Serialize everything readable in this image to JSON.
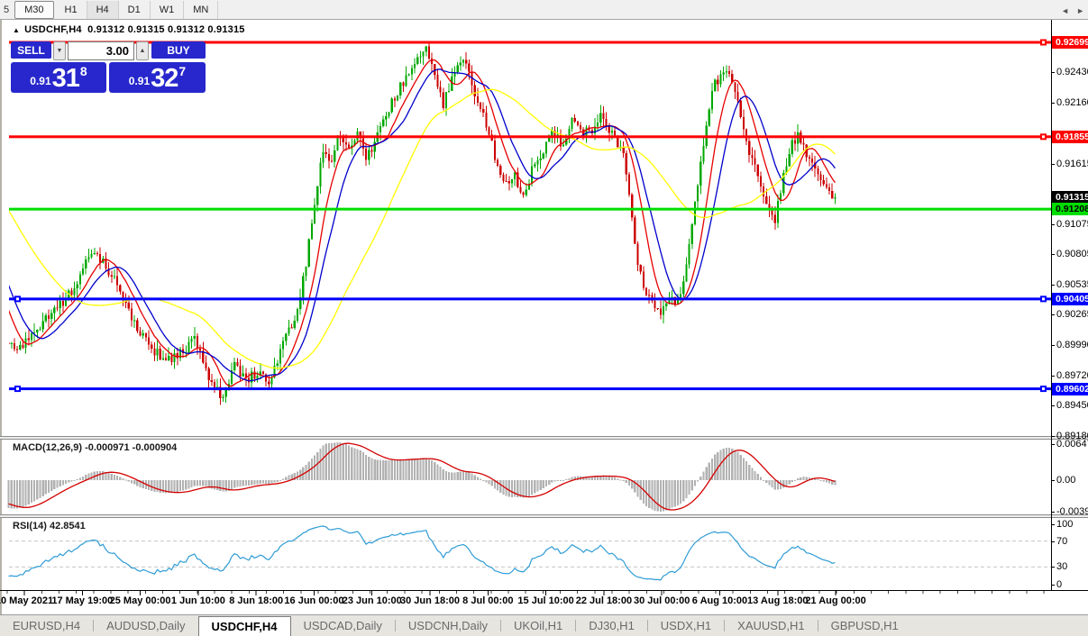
{
  "toolbar": {
    "items": [
      {
        "label": "5",
        "state": "partial"
      },
      {
        "label": "M30",
        "state": "pressed"
      },
      {
        "label": "H1",
        "state": "normal"
      },
      {
        "label": "H4",
        "state": "subtle"
      },
      {
        "label": "D1",
        "state": "normal"
      },
      {
        "label": "W1",
        "state": "normal"
      },
      {
        "label": "MN",
        "state": "normal"
      }
    ]
  },
  "header": {
    "collapse_icon": "▲",
    "title": "USDCHF,H4",
    "ohlc": "0.91312 0.91315 0.91312 0.91315"
  },
  "trade_panel": {
    "sell_label": "SELL",
    "buy_label": "BUY",
    "volume": "3.00",
    "spinner_down": "▼",
    "spinner_up": "▲",
    "sell_price": {
      "prefix": "0.91",
      "big": "31",
      "pip": "8"
    },
    "buy_price": {
      "prefix": "0.91",
      "big": "32",
      "pip": "7"
    }
  },
  "colors": {
    "up": "#00a800",
    "down": "#cc0000",
    "ma_fast": "#e60000",
    "ma_mid": "#0000cc",
    "ma_slow": "#ffff00",
    "line_red": "#ff0000",
    "line_green": "#00dd00",
    "line_blue": "#0000ff",
    "macd_hist": "#b2b2b2",
    "macd_signal": "#d40000",
    "rsi": "#2e9cd6",
    "level_dash": "#c6c6c6"
  },
  "chart_data": {
    "type": "candlestick",
    "symbol": "USDCHF",
    "timeframe": "H4",
    "current": {
      "open": "0.91312",
      "high": "0.91315",
      "low": "0.91312",
      "close": "0.91315"
    },
    "bars_visible": 290,
    "price_range_axis": {
      "top": 0.92699,
      "bottom": 0.8918
    },
    "price_path_anchors": [
      [
        0.0,
        0.9002
      ],
      [
        0.01,
        0.8993
      ],
      [
        0.028,
        0.9007
      ],
      [
        0.05,
        0.9026
      ],
      [
        0.075,
        0.9046
      ],
      [
        0.1,
        0.9082
      ],
      [
        0.115,
        0.9072
      ],
      [
        0.132,
        0.9056
      ],
      [
        0.152,
        0.9018
      ],
      [
        0.172,
        0.8996
      ],
      [
        0.192,
        0.8986
      ],
      [
        0.21,
        0.8992
      ],
      [
        0.226,
        0.9004
      ],
      [
        0.242,
        0.8972
      ],
      [
        0.26,
        0.895
      ],
      [
        0.273,
        0.8982
      ],
      [
        0.288,
        0.8968
      ],
      [
        0.302,
        0.8976
      ],
      [
        0.316,
        0.8963
      ],
      [
        0.33,
        0.8998
      ],
      [
        0.345,
        0.902
      ],
      [
        0.358,
        0.9062
      ],
      [
        0.37,
        0.9125
      ],
      [
        0.381,
        0.9176
      ],
      [
        0.39,
        0.9162
      ],
      [
        0.4,
        0.919
      ],
      [
        0.41,
        0.9172
      ],
      [
        0.422,
        0.9186
      ],
      [
        0.434,
        0.9166
      ],
      [
        0.446,
        0.9188
      ],
      [
        0.458,
        0.9206
      ],
      [
        0.472,
        0.9228
      ],
      [
        0.486,
        0.9242
      ],
      [
        0.498,
        0.9258
      ],
      [
        0.506,
        0.9266
      ],
      [
        0.516,
        0.9238
      ],
      [
        0.526,
        0.9215
      ],
      [
        0.54,
        0.9246
      ],
      [
        0.553,
        0.9252
      ],
      [
        0.566,
        0.922
      ],
      [
        0.578,
        0.9198
      ],
      [
        0.59,
        0.9164
      ],
      [
        0.601,
        0.9146
      ],
      [
        0.612,
        0.9152
      ],
      [
        0.623,
        0.913
      ],
      [
        0.634,
        0.9158
      ],
      [
        0.646,
        0.9172
      ],
      [
        0.658,
        0.9192
      ],
      [
        0.67,
        0.9178
      ],
      [
        0.681,
        0.9202
      ],
      [
        0.692,
        0.919
      ],
      [
        0.705,
        0.9192
      ],
      [
        0.718,
        0.9206
      ],
      [
        0.731,
        0.9186
      ],
      [
        0.744,
        0.9168
      ],
      [
        0.753,
        0.9122
      ],
      [
        0.761,
        0.9076
      ],
      [
        0.77,
        0.9048
      ],
      [
        0.78,
        0.9038
      ],
      [
        0.79,
        0.903
      ],
      [
        0.799,
        0.9046
      ],
      [
        0.807,
        0.9038
      ],
      [
        0.816,
        0.9052
      ],
      [
        0.825,
        0.9092
      ],
      [
        0.835,
        0.9152
      ],
      [
        0.845,
        0.9202
      ],
      [
        0.855,
        0.9234
      ],
      [
        0.866,
        0.9244
      ],
      [
        0.876,
        0.9234
      ],
      [
        0.886,
        0.9204
      ],
      [
        0.896,
        0.9174
      ],
      [
        0.906,
        0.915
      ],
      [
        0.916,
        0.9124
      ],
      [
        0.926,
        0.9108
      ],
      [
        0.936,
        0.9146
      ],
      [
        0.946,
        0.9178
      ],
      [
        0.956,
        0.9188
      ],
      [
        0.966,
        0.917
      ],
      [
        0.978,
        0.915
      ],
      [
        0.988,
        0.9138
      ],
      [
        1.0,
        0.9131
      ]
    ],
    "horizontal_lines": [
      {
        "price": 0.92699,
        "color": "red",
        "markers": [
          "right"
        ]
      },
      {
        "price": 0.91855,
        "color": "red",
        "markers": [
          "right"
        ]
      },
      {
        "price": 0.91208,
        "color": "green",
        "markers": []
      },
      {
        "price": 0.90405,
        "color": "blue",
        "markers": [
          "left",
          "right"
        ]
      },
      {
        "price": 0.89602,
        "color": "blue",
        "markers": [
          "left",
          "right"
        ]
      }
    ],
    "price_axis_labels": [
      {
        "text": "0.92699",
        "style": "red"
      },
      {
        "text": "0.92430",
        "style": "plain"
      },
      {
        "text": "0.92160",
        "style": "plain"
      },
      {
        "text": "0.91855",
        "style": "red"
      },
      {
        "text": "0.91615",
        "style": "plain"
      },
      {
        "text": "0.91315",
        "style": "black"
      },
      {
        "text": "0.91208",
        "style": "green"
      },
      {
        "text": "0.91075",
        "style": "plain"
      },
      {
        "text": "0.90805",
        "style": "plain"
      },
      {
        "text": "0.90535",
        "style": "plain"
      },
      {
        "text": "0.90405",
        "style": "blue"
      },
      {
        "text": "0.90265",
        "style": "plain"
      },
      {
        "text": "0.89990",
        "style": "plain"
      },
      {
        "text": "0.89720",
        "style": "plain"
      },
      {
        "text": "0.89602",
        "style": "blue"
      },
      {
        "text": "0.89450",
        "style": "plain"
      },
      {
        "text": "0.89180",
        "style": "plain"
      }
    ],
    "x_axis_labels": [
      "10 May 2021",
      "17 May 19:00",
      "25 May 00:00",
      "1 Jun 10:00",
      "8 Jun 18:00",
      "16 Jun 00:00",
      "23 Jun 10:00",
      "30 Jun 18:00",
      "8 Jul 00:00",
      "15 Jul 10:00",
      "22 Jul 18:00",
      "30 Jul 00:00",
      "6 Aug 10:00",
      "13 Aug 18:00",
      "21 Aug 00:00"
    ],
    "moving_averages": [
      {
        "period": 9,
        "color_key": "ma_fast"
      },
      {
        "period": 15,
        "color_key": "ma_mid"
      },
      {
        "period": 42,
        "color_key": "ma_slow"
      }
    ],
    "macd": {
      "label": "MACD(12,26,9) -0.000971 -0.000904",
      "fast": 12,
      "slow": 26,
      "signal": 9,
      "value_main": -0.000971,
      "value_signal": -0.000904,
      "axis_top": "0.00647",
      "axis_zero": "0.00",
      "axis_bottom": "-0.00391"
    },
    "rsi": {
      "label": "RSI(14) 42.8541",
      "period": 14,
      "value": 42.8541,
      "axis": [
        "100",
        "70",
        "30",
        "0"
      ],
      "levels": [
        70,
        30
      ]
    }
  },
  "tabs": {
    "items": [
      {
        "label": "EURUSD,H4",
        "active": false
      },
      {
        "label": "AUDUSD,Daily",
        "active": false
      },
      {
        "label": "USDCHF,H4",
        "active": true
      },
      {
        "label": "USDCAD,Daily",
        "active": false
      },
      {
        "label": "USDCNH,Daily",
        "active": false
      },
      {
        "label": "UKOil,H1",
        "active": false
      },
      {
        "label": "DJ30,H1",
        "active": false
      },
      {
        "label": "USDX,H1",
        "active": false
      },
      {
        "label": "XAUUSD,H1",
        "active": false
      },
      {
        "label": "GBPUSD,H1",
        "active": false
      }
    ],
    "scroll_left": "◄",
    "scroll_right": "►"
  }
}
